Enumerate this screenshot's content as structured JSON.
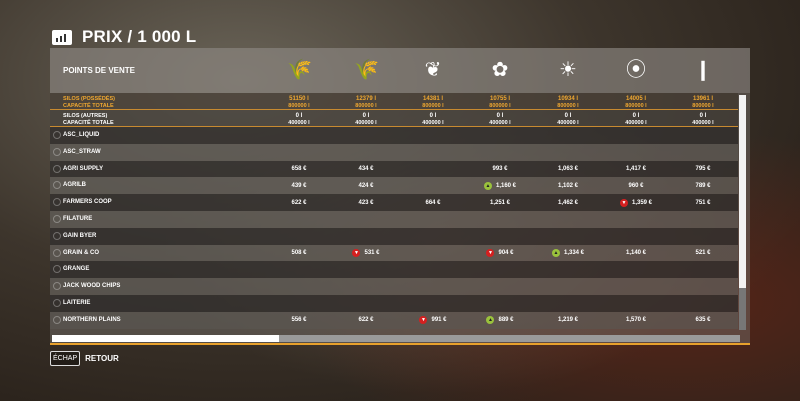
{
  "title": "PRIX / 1 000 L",
  "header_label": "POINTS DE VENTE",
  "crops": [
    {
      "icon": "wheat-icon",
      "glyph": "🌾"
    },
    {
      "icon": "barley-icon",
      "glyph": "🌾"
    },
    {
      "icon": "oat-icon",
      "glyph": "❦"
    },
    {
      "icon": "canola-icon",
      "glyph": "✿"
    },
    {
      "icon": "sunflower-icon",
      "glyph": "☀"
    },
    {
      "icon": "soybean-icon",
      "glyph": "⦿"
    },
    {
      "icon": "corn-icon",
      "glyph": "❙"
    }
  ],
  "silos_own": {
    "label": "SILOS (POSSÉDÉS)",
    "cap_label": "CAPACITÉ TOTALE",
    "values": [
      "51150 l",
      "12379 l",
      "14381 l",
      "10755 l",
      "10934 l",
      "14005 l",
      "13961 l"
    ],
    "caps": [
      "800000 l",
      "800000 l",
      "800000 l",
      "800000 l",
      "800000 l",
      "800000 l",
      "800000 l"
    ]
  },
  "silos_other": {
    "label": "SILOS (AUTRES)",
    "cap_label": "CAPACITÉ TOTALE",
    "values": [
      "0 l",
      "0 l",
      "0 l",
      "0 l",
      "0 l",
      "0 l",
      "0 l"
    ],
    "caps": [
      "400000 l",
      "400000 l",
      "400000 l",
      "400000 l",
      "400000 l",
      "400000 l",
      "400000 l"
    ]
  },
  "rows": [
    {
      "name": "ASC_LIQUID",
      "cells": [
        null,
        null,
        null,
        null,
        null,
        null,
        null
      ]
    },
    {
      "name": "ASC_STRAW",
      "cells": [
        null,
        null,
        null,
        null,
        null,
        null,
        null
      ]
    },
    {
      "name": "AGRI SUPPLY",
      "cells": [
        {
          "v": "658 €"
        },
        {
          "v": "434 €"
        },
        null,
        {
          "v": "993 €"
        },
        {
          "v": "1,063 €"
        },
        {
          "v": "1,417 €"
        },
        {
          "v": "795 €"
        }
      ]
    },
    {
      "name": "AGRILB",
      "cells": [
        {
          "v": "439 €"
        },
        {
          "v": "424 €"
        },
        null,
        {
          "v": "1,160 €",
          "t": "up"
        },
        {
          "v": "1,102 €"
        },
        {
          "v": "960 €"
        },
        {
          "v": "789 €"
        }
      ]
    },
    {
      "name": "FARMERS COOP",
      "cells": [
        {
          "v": "622 €"
        },
        {
          "v": "423 €"
        },
        {
          "v": "664 €"
        },
        {
          "v": "1,251 €"
        },
        {
          "v": "1,462 €"
        },
        {
          "v": "1,359 €",
          "t": "down"
        },
        {
          "v": "751 €"
        }
      ]
    },
    {
      "name": "FILATURE",
      "cells": [
        null,
        null,
        null,
        null,
        null,
        null,
        null
      ]
    },
    {
      "name": "GAIN BYER",
      "cells": [
        null,
        null,
        null,
        null,
        null,
        null,
        null
      ]
    },
    {
      "name": "GRAIN & CO",
      "cells": [
        {
          "v": "508 €"
        },
        {
          "v": "531 €",
          "t": "down"
        },
        null,
        {
          "v": "904 €",
          "t": "down"
        },
        {
          "v": "1,334 €",
          "t": "up"
        },
        {
          "v": "1,140 €"
        },
        {
          "v": "521 €"
        }
      ]
    },
    {
      "name": "GRANGE",
      "cells": [
        null,
        null,
        null,
        null,
        null,
        null,
        null
      ]
    },
    {
      "name": "JACK WOOD CHIPS",
      "cells": [
        null,
        null,
        null,
        null,
        null,
        null,
        null
      ]
    },
    {
      "name": "LAITERIE",
      "cells": [
        null,
        null,
        null,
        null,
        null,
        null,
        null
      ]
    },
    {
      "name": "NORTHERN PLAINS",
      "cells": [
        {
          "v": "556 €"
        },
        {
          "v": "622 €"
        },
        {
          "v": "991 €",
          "t": "down"
        },
        {
          "v": "889 €",
          "t": "up"
        },
        {
          "v": "1,219 €"
        },
        {
          "v": "1,570 €"
        },
        {
          "v": "635 €"
        }
      ]
    }
  ],
  "scroll": {
    "vertical_visible_fraction": 0.82,
    "horizontal_visible_fraction": 0.33
  },
  "footer": {
    "key": "ÉCHAP",
    "label": "RETOUR"
  },
  "colors": {
    "accent": "#e8a12c",
    "trend_up": "#9ac23c",
    "trend_down": "#d42020"
  }
}
